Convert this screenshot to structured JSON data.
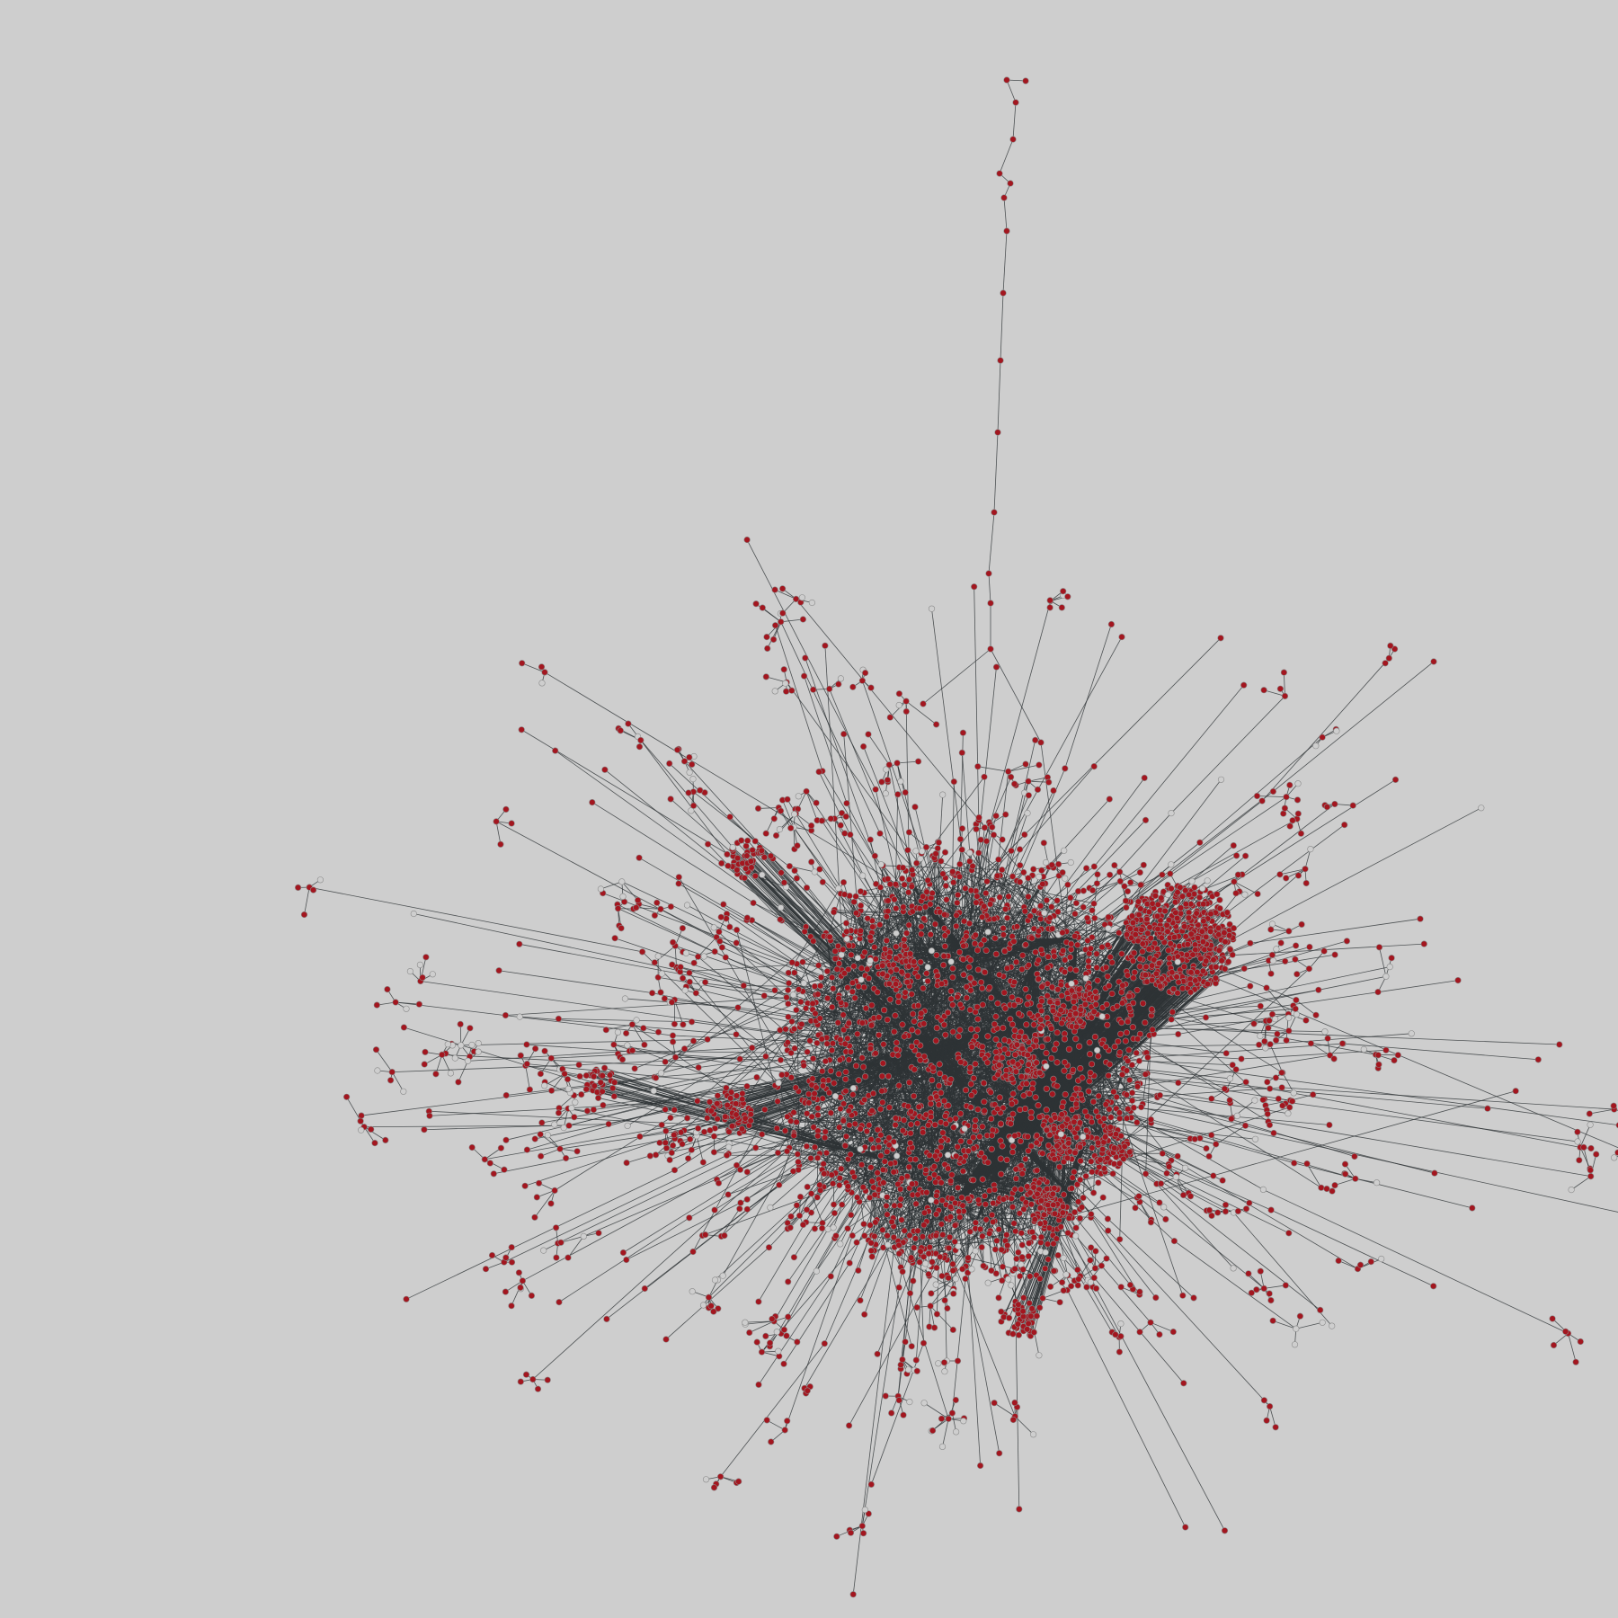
{
  "graph": {
    "type": "network",
    "layout": "force-directed",
    "labels_shown": false,
    "colors": {
      "background": "#cecece",
      "node_fill": "#a3161f",
      "node_stroke": "#8a8a8a",
      "hollow_node_fill": "#cecece",
      "edge": "#2e3336"
    }
  }
}
